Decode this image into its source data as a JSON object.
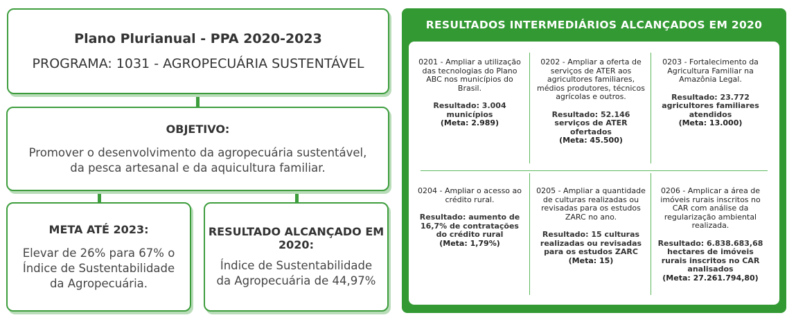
{
  "plan": {
    "title": "Plano Plurianual - PPA 2020-2023",
    "program": "PROGRAMA: 1031 - AGROPECUÁRIA SUSTENTÁVEL"
  },
  "objective": {
    "heading": "OBJETIVO:",
    "text": "Promover o desenvolvimento da agropecuária sustentável, da pesca artesanal e da aquicultura familiar."
  },
  "goal": {
    "heading": "META ATÉ 2023:",
    "text": "Elevar de 26% para 67% o Índice de Sustentabilidade da Agropecuária."
  },
  "achieved": {
    "heading": "RESULTADO ALCANÇADO EM 2020:",
    "text": "Índice de Sustentabilidade da Agropecuária de 44,97%"
  },
  "results": {
    "title": "RESULTADOS INTERMEDIÁRIOS ALCANÇADOS EM 2020",
    "items": [
      {
        "desc": "0201 - Ampliar a utilização das tecnologias do Plano ABC nos municípios do Brasil.",
        "result": "Resultado: 3.004 municípios",
        "meta": "(Meta: 2.989)"
      },
      {
        "desc": "0202 - Ampliar a oferta de serviços de ATER aos agricultores familiares, médios produtores, técnicos agrícolas e outros.",
        "result": "Resultado: 52.146 serviços de ATER ofertados",
        "meta": "(Meta: 45.500)"
      },
      {
        "desc": "0203 - Fortalecimento da Agricultura Familiar na Amazônia Legal.",
        "result": "Resultado: 23.772 agricultores familiares atendidos",
        "meta": "(Meta: 13.000)"
      },
      {
        "desc": "0204 - Ampliar o acesso ao crédito rural.",
        "result": "Resultado: aumento de 16,7% de contratações do crédito rural",
        "meta": "(Meta: 1,79%)"
      },
      {
        "desc": "0205 - Ampliar a quantidade de culturas realizadas ou revisadas para os estudos ZARC no ano.",
        "result": "Resultado: 15 culturas realizadas ou revisadas para os estudos ZARC",
        "meta": "(Meta: 15)"
      },
      {
        "desc": "0206 - Amplicar a área de imóveis rurais inscritos no CAR com análise da regularização ambiental realizada.",
        "result": "Resultado: 6.838.683,68 hectares de imóveis rurais inscritos no CAR analisados",
        "meta": "(Meta: 27.261.794,80)"
      }
    ]
  },
  "colors": {
    "accent": "#339933"
  }
}
